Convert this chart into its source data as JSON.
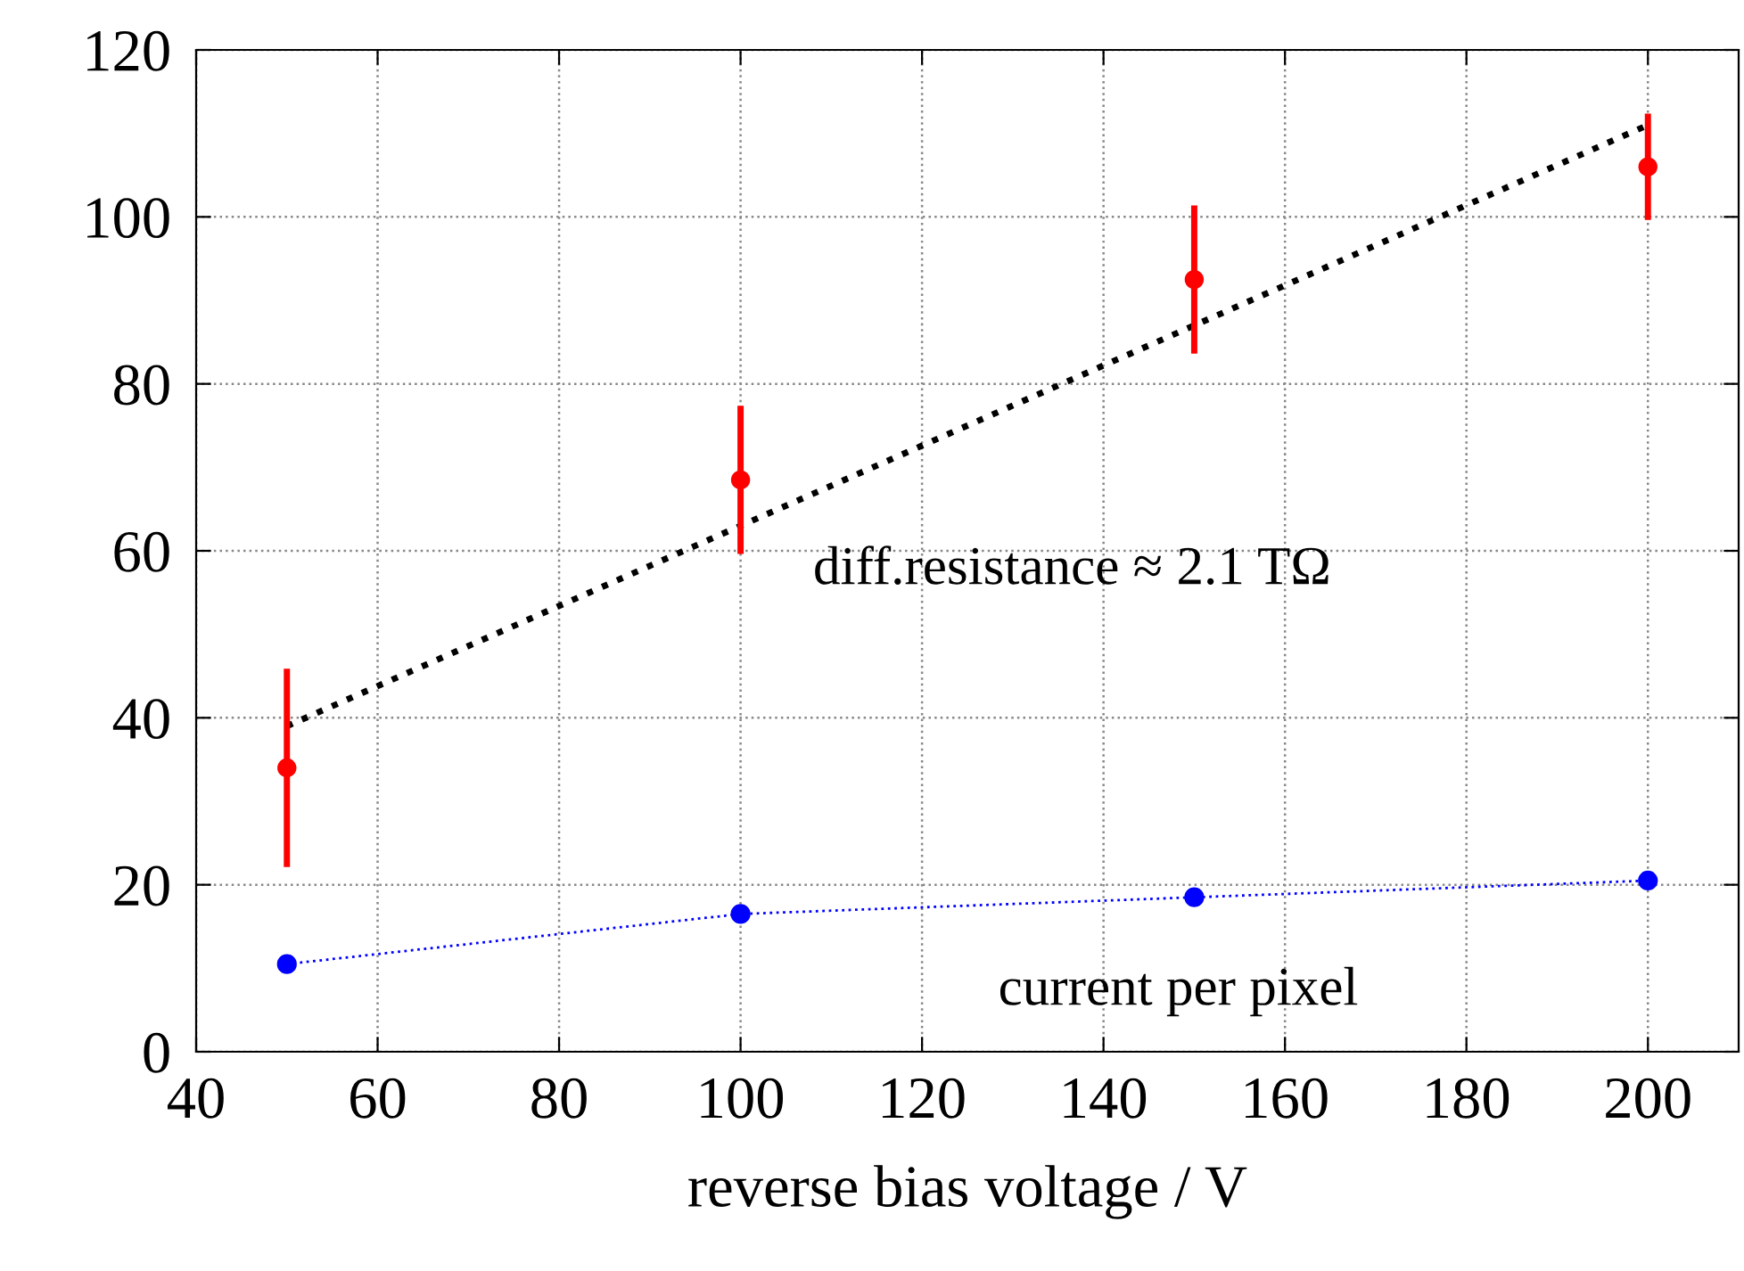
{
  "chart_data": {
    "type": "scatter",
    "xlabel": "reverse bias voltage / V",
    "xlim": [
      40,
      210
    ],
    "xticks": [
      40,
      60,
      80,
      100,
      120,
      140,
      160,
      180,
      200
    ],
    "ylim": [
      0,
      120
    ],
    "yticks": [
      0,
      20,
      40,
      60,
      80,
      100,
      120
    ],
    "grid": true,
    "series": [
      {
        "color": "#ff0000",
        "x": [
          50,
          100,
          150,
          200
        ],
        "values": [
          34,
          68.5,
          92.5,
          106
        ],
        "errors": [
          [
            22.5,
            45.5
          ],
          [
            60,
            77
          ],
          [
            84,
            101
          ],
          [
            100,
            112
          ]
        ],
        "marker": "circle"
      },
      {
        "type": "line",
        "color": "#000000",
        "x": [
          50,
          200
        ],
        "values": [
          39,
          111
        ],
        "line_style": "dotted",
        "marker": "none"
      },
      {
        "type": "line",
        "color": "#0000ff",
        "x": [
          50,
          100,
          150,
          200
        ],
        "values": [
          10.5,
          16.5,
          18.5,
          20.5
        ],
        "line_style": "dotted",
        "marker": "circle"
      }
    ],
    "annotations": [
      "diff.resistance ≈ 2.1 TΩ",
      "current per pixel"
    ]
  }
}
